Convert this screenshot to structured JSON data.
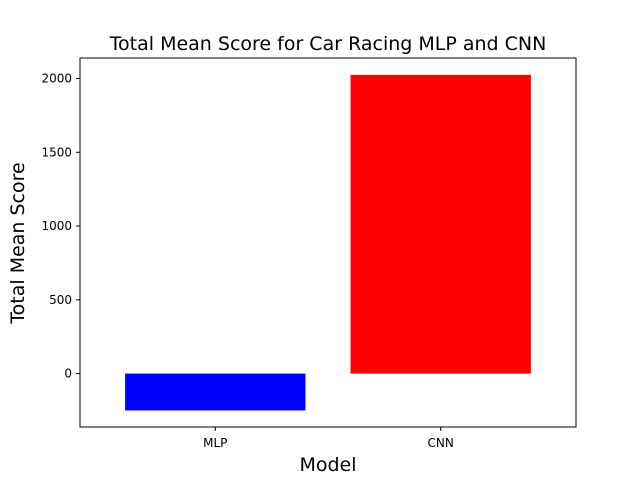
{
  "chart_data": {
    "type": "bar",
    "title": "Total Mean Score for Car Racing MLP and CNN",
    "xlabel": "Model",
    "ylabel": "Total Mean Score",
    "categories": [
      "MLP",
      "CNN"
    ],
    "values": [
      -250,
      2025
    ],
    "colors": [
      "#0000ff",
      "#ff0000"
    ],
    "ylim": [
      -362,
      2139
    ],
    "yticks": [
      0,
      500,
      1000,
      1500,
      2000
    ],
    "grid": false,
    "legend": "none"
  }
}
